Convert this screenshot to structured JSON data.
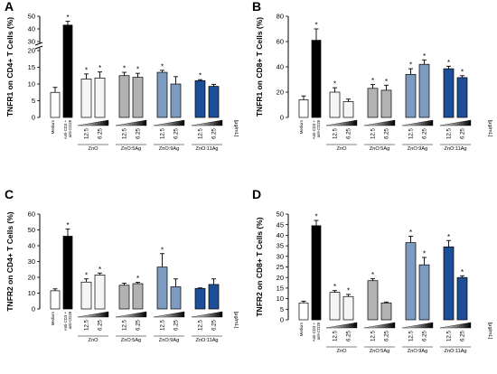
{
  "chart_data": [
    {
      "panel": "A",
      "type": "bar",
      "ylabel": "TNFR1 on CD4+ T Cells (%)",
      "scale": "broken",
      "lower": {
        "range": [
          0,
          20
        ],
        "ticks": [
          0,
          5,
          10,
          15,
          20
        ]
      },
      "upper": {
        "range": [
          30,
          50
        ],
        "ticks": [
          30,
          40,
          50
        ]
      },
      "categories": [
        "Medium",
        "Anti-CD3 + anti-CD28",
        "12.5",
        "6.25",
        "12.5",
        "6.25",
        "12.5",
        "6.25",
        "12.5",
        "6.25"
      ],
      "groups": [
        "ZnO",
        "ZnO:5Ag",
        "ZnO:9Ag",
        "ZnO:11Ag"
      ],
      "unit": "[μg/mL]",
      "values": [
        7.5,
        43,
        11.5,
        11.8,
        12.5,
        12,
        13.5,
        10,
        11,
        9.3
      ],
      "errors": [
        1.5,
        3,
        1.5,
        1.8,
        1,
        1.2,
        0.6,
        2.2,
        0.3,
        0.6
      ],
      "significant": [
        false,
        true,
        true,
        true,
        true,
        true,
        true,
        false,
        true,
        false
      ]
    },
    {
      "panel": "B",
      "type": "bar",
      "ylabel": "TNFR1 on CD8+ T Cells (%)",
      "ylim": [
        0,
        80
      ],
      "yticks": [
        0,
        20,
        40,
        60,
        80
      ],
      "categories": [
        "Medium",
        "Anti-CD3 + anti-CD28",
        "12.5",
        "6.25",
        "12.5",
        "6.25",
        "12.5",
        "6.25",
        "12.5",
        "6.25"
      ],
      "groups": [
        "ZnO",
        "ZnO:5Ag",
        "ZnO:9Ag",
        "ZnO:11Ag"
      ],
      "unit": "[μg/mL]",
      "values": [
        14,
        61,
        20,
        12.5,
        23,
        21.5,
        34,
        42,
        38.5,
        31.5
      ],
      "errors": [
        3,
        9,
        3.5,
        2,
        3,
        4,
        4.5,
        3.5,
        2,
        1.5
      ],
      "significant": [
        false,
        true,
        true,
        false,
        true,
        true,
        true,
        true,
        true,
        true
      ]
    },
    {
      "panel": "C",
      "type": "bar",
      "ylabel": "TNFR2 on CD4+ T Cells (%)",
      "ylim": [
        0,
        60
      ],
      "yticks": [
        0,
        10,
        20,
        30,
        40,
        50,
        60
      ],
      "categories": [
        "Medium",
        "Anti-CD3 + anti-CD28",
        "12.5",
        "6.25",
        "12.5",
        "6.25",
        "12.5",
        "6.25",
        "12.5",
        "6.25"
      ],
      "groups": [
        "ZnO",
        "ZnO:5Ag",
        "ZnO:9Ag",
        "ZnO:11Ag"
      ],
      "unit": "[μg/mL]",
      "values": [
        11.5,
        46,
        17,
        21.5,
        15,
        16,
        26.5,
        14,
        13,
        15.5
      ],
      "errors": [
        1.2,
        4.5,
        2,
        1.2,
        1.3,
        0.8,
        8.5,
        5,
        0.3,
        3.5
      ],
      "significant": [
        false,
        true,
        true,
        true,
        false,
        true,
        true,
        false,
        false,
        false
      ]
    },
    {
      "panel": "D",
      "type": "bar",
      "ylabel": "TNFR2 on CD8+ T Cells (%)",
      "ylim": [
        0,
        50
      ],
      "yticks": [
        0,
        5,
        10,
        15,
        20,
        25,
        30,
        35,
        40,
        45,
        50
      ],
      "categories": [
        "Medium",
        "Anti-CD3 + anti-CD28",
        "12.5",
        "6.25",
        "12.5",
        "6.25",
        "12.5",
        "6.25",
        "12.5",
        "6.25"
      ],
      "groups": [
        "ZnO",
        "ZnO:5Ag",
        "ZnO:9Ag",
        "ZnO:11Ag"
      ],
      "unit": "[μg/mL]",
      "values": [
        8,
        44.5,
        13,
        11,
        18.5,
        8,
        36.5,
        26,
        34.5,
        20
      ],
      "errors": [
        0.8,
        2.5,
        0.8,
        1,
        1,
        0.4,
        3,
        3.5,
        3,
        0.8
      ],
      "significant": [
        false,
        true,
        true,
        true,
        true,
        false,
        true,
        true,
        true,
        true
      ]
    }
  ],
  "style": {
    "bar_colors": [
      "#ffffff",
      "#000000",
      "#f5f5f5",
      "#f5f5f5",
      "#b2b2b2",
      "#b2b2b2",
      "#7d9bc0",
      "#7d9bc0",
      "#1d4f98",
      "#1d4f98"
    ]
  }
}
